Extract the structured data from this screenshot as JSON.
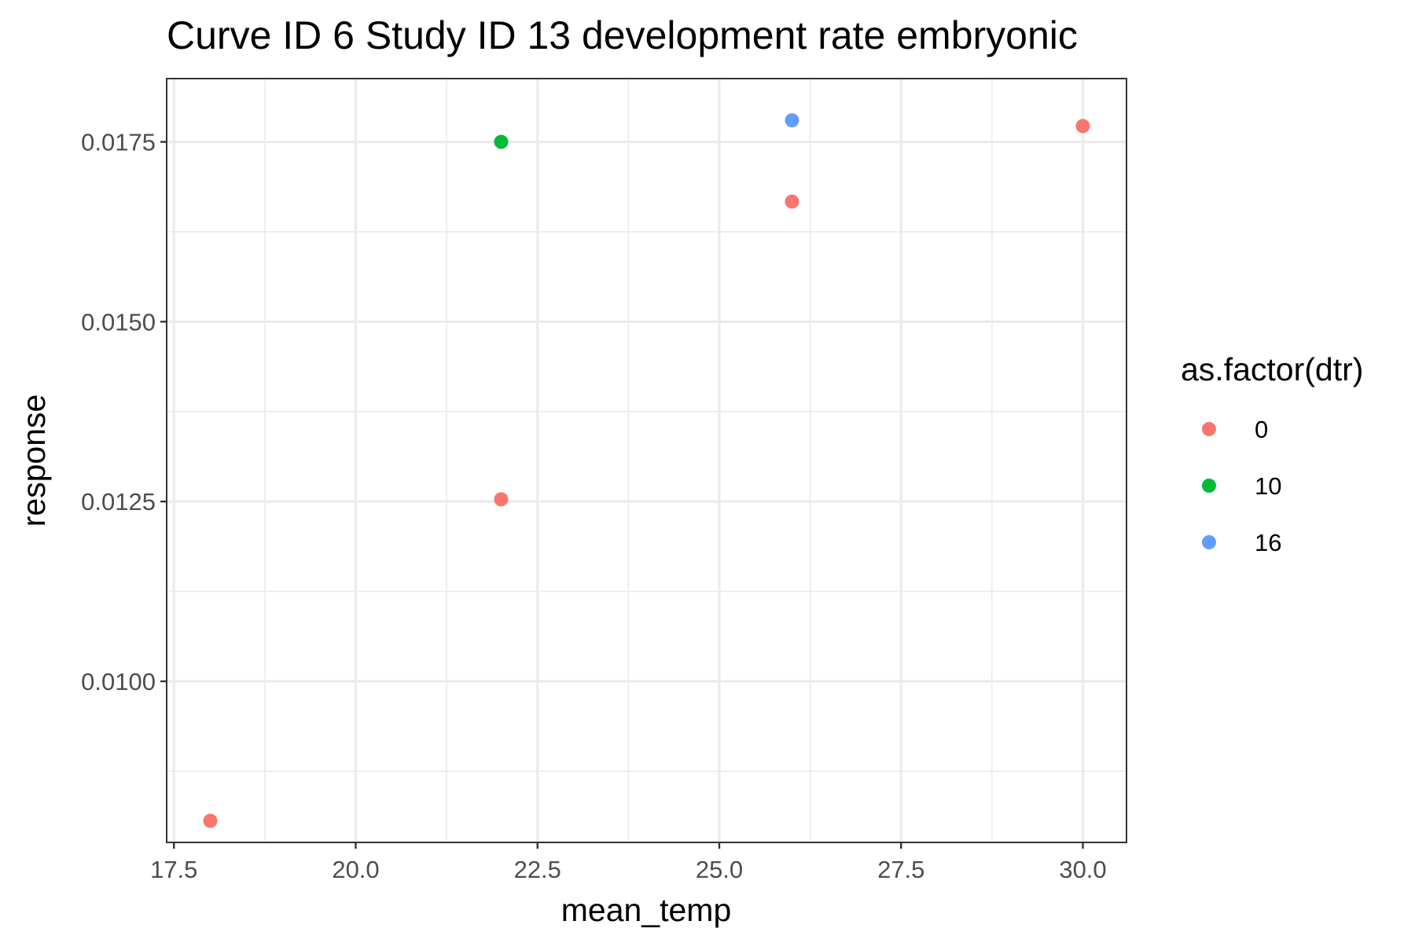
{
  "chart_data": {
    "type": "scatter",
    "title": "Curve ID 6 Study ID 13 development rate embryonic",
    "xlabel": "mean_temp",
    "ylabel": "response",
    "xlim": [
      17.4,
      30.6
    ],
    "ylim": [
      0.00776,
      0.01838
    ],
    "x_ticks": [
      17.5,
      20.0,
      22.5,
      25.0,
      27.5,
      30.0
    ],
    "x_tick_labels": [
      "17.5",
      "20.0",
      "22.5",
      "25.0",
      "27.5",
      "30.0"
    ],
    "y_ticks": [
      0.01,
      0.0125,
      0.015,
      0.0175
    ],
    "y_tick_labels": [
      "0.0100",
      "0.0125",
      "0.0150",
      "0.0175"
    ],
    "grid": true,
    "legend": {
      "title": "as.factor(dtr)",
      "placement": "right",
      "entries": [
        {
          "label": "0",
          "color": "#F8766D"
        },
        {
          "label": "10",
          "color": "#00BA38"
        },
        {
          "label": "16",
          "color": "#619CFF"
        }
      ]
    },
    "series": [
      {
        "name": "0",
        "color": "#F8766D",
        "points": [
          [
            18,
            0.00806
          ],
          [
            22,
            0.01253
          ],
          [
            26,
            0.01667
          ],
          [
            30,
            0.01772
          ]
        ]
      },
      {
        "name": "10",
        "color": "#00BA38",
        "points": [
          [
            22,
            0.0175
          ]
        ]
      },
      {
        "name": "16",
        "color": "#619CFF",
        "points": [
          [
            26,
            0.0178
          ]
        ]
      }
    ]
  }
}
